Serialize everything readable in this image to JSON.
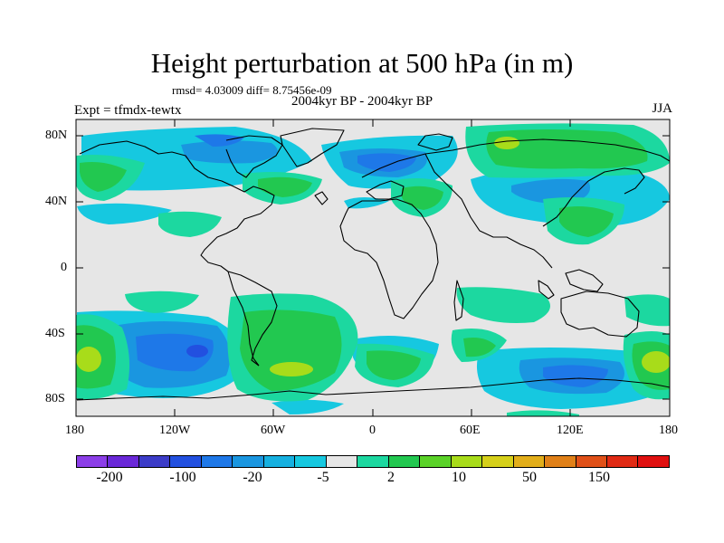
{
  "header": {
    "title": "Height perturbation at 500 hPa (in m)",
    "stats": "rmsd= 4.03009 diff= 8.75456e-09",
    "subtitle": "2004kyr BP - 2004kyr BP",
    "experiment": "Expt = tfmdx-tewtx",
    "season": "JJA"
  },
  "map": {
    "lat_labels": [
      "80N",
      "40N",
      "0",
      "40S",
      "80S"
    ],
    "lon_labels": [
      "180",
      "120W",
      "60W",
      "0",
      "60E",
      "120E",
      "180"
    ]
  },
  "colorbar": {
    "colors": [
      "#8c3ee8",
      "#6a28d8",
      "#3c3cc8",
      "#2250e0",
      "#1e78e8",
      "#1a96e0",
      "#16b0e0",
      "#16c8e0",
      "#e6e6e6",
      "#1cd8a0",
      "#22c850",
      "#5ad228",
      "#a8dc1a",
      "#d6d01a",
      "#e2ae1a",
      "#e08018",
      "#e05018",
      "#e02a14",
      "#e01010"
    ],
    "labels": [
      "-200",
      "-100",
      "-20",
      "-5",
      "2",
      "10",
      "50",
      "150"
    ]
  }
}
